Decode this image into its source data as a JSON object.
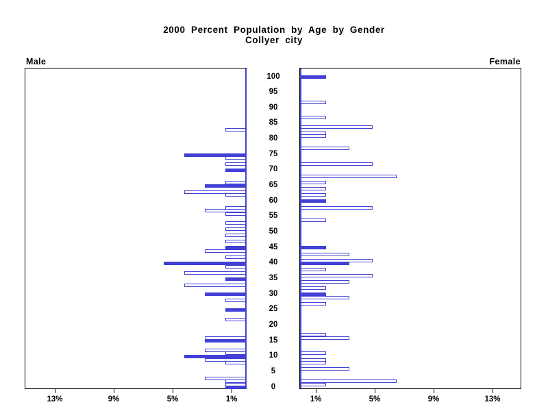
{
  "chart_data": {
    "type": "bar",
    "variant": "population-pyramid",
    "title": "2000 Percent Population by Age by Gender",
    "subtitle": "Collyer city",
    "left_panel_label": "Male",
    "right_panel_label": "Female",
    "legend_position": "none",
    "grid": false,
    "bar_style_note": "ages divisible by 5 drawn solid, other ages drawn hollow outline",
    "colors": {
      "bar": "#4040d6",
      "text": "#000000",
      "background": "#ffffff"
    },
    "age_axis": {
      "min": 0,
      "max": 100,
      "tick_interval": 5,
      "ticks": [
        0,
        5,
        10,
        15,
        20,
        25,
        30,
        35,
        40,
        45,
        50,
        55,
        60,
        65,
        70,
        75,
        80,
        85,
        90,
        95,
        100
      ]
    },
    "percent_axis": {
      "max_percent": 15,
      "male_ticks": [
        {
          "label": "13%",
          "value": 13
        },
        {
          "label": "9%",
          "value": 9
        },
        {
          "label": "5%",
          "value": 5
        },
        {
          "label": "1%",
          "value": 1
        }
      ],
      "female_ticks": [
        {
          "label": "1%",
          "value": 1
        },
        {
          "label": "5%",
          "value": 5
        },
        {
          "label": "9%",
          "value": 9
        },
        {
          "label": "13%",
          "value": 13
        }
      ]
    },
    "series": [
      {
        "name": "Male",
        "bars": [
          {
            "age": 83,
            "value": 1.4,
            "filled": false
          },
          {
            "age": 75,
            "value": 4.2,
            "filled": true
          },
          {
            "age": 74,
            "value": 1.4,
            "filled": false
          },
          {
            "age": 72,
            "value": 1.4,
            "filled": false
          },
          {
            "age": 70,
            "value": 1.4,
            "filled": true
          },
          {
            "age": 66,
            "value": 1.4,
            "filled": false
          },
          {
            "age": 65,
            "value": 2.8,
            "filled": true
          },
          {
            "age": 63,
            "value": 4.2,
            "filled": false
          },
          {
            "age": 62,
            "value": 1.4,
            "filled": false
          },
          {
            "age": 58,
            "value": 1.4,
            "filled": false
          },
          {
            "age": 57,
            "value": 2.8,
            "filled": false
          },
          {
            "age": 56,
            "value": 1.4,
            "filled": false
          },
          {
            "age": 53,
            "value": 1.4,
            "filled": false
          },
          {
            "age": 51,
            "value": 1.4,
            "filled": false
          },
          {
            "age": 49,
            "value": 1.4,
            "filled": false
          },
          {
            "age": 47,
            "value": 1.4,
            "filled": false
          },
          {
            "age": 45,
            "value": 1.4,
            "filled": true
          },
          {
            "age": 44,
            "value": 2.8,
            "filled": false
          },
          {
            "age": 42,
            "value": 1.4,
            "filled": false
          },
          {
            "age": 40,
            "value": 5.6,
            "filled": true
          },
          {
            "age": 39,
            "value": 1.4,
            "filled": false
          },
          {
            "age": 37,
            "value": 4.2,
            "filled": false
          },
          {
            "age": 35,
            "value": 1.4,
            "filled": true
          },
          {
            "age": 33,
            "value": 4.2,
            "filled": false
          },
          {
            "age": 30,
            "value": 2.8,
            "filled": true
          },
          {
            "age": 28,
            "value": 1.4,
            "filled": false
          },
          {
            "age": 25,
            "value": 1.4,
            "filled": true
          },
          {
            "age": 22,
            "value": 1.4,
            "filled": false
          },
          {
            "age": 16,
            "value": 2.8,
            "filled": false
          },
          {
            "age": 15,
            "value": 2.8,
            "filled": true
          },
          {
            "age": 12,
            "value": 2.8,
            "filled": false
          },
          {
            "age": 11,
            "value": 1.4,
            "filled": false
          },
          {
            "age": 10,
            "value": 4.2,
            "filled": true
          },
          {
            "age": 9,
            "value": 2.8,
            "filled": false
          },
          {
            "age": 8,
            "value": 1.4,
            "filled": false
          },
          {
            "age": 3,
            "value": 2.8,
            "filled": false
          },
          {
            "age": 2,
            "value": 1.4,
            "filled": false
          },
          {
            "age": 1,
            "value": 1.4,
            "filled": false
          },
          {
            "age": 0,
            "value": 1.4,
            "filled": true
          }
        ]
      },
      {
        "name": "Female",
        "bars": [
          {
            "age": 100,
            "value": 1.7,
            "filled": true
          },
          {
            "age": 92,
            "value": 1.7,
            "filled": false
          },
          {
            "age": 87,
            "value": 1.7,
            "filled": false
          },
          {
            "age": 84,
            "value": 4.9,
            "filled": false
          },
          {
            "age": 82,
            "value": 1.7,
            "filled": false
          },
          {
            "age": 81,
            "value": 1.7,
            "filled": false
          },
          {
            "age": 77,
            "value": 3.3,
            "filled": false
          },
          {
            "age": 72,
            "value": 4.9,
            "filled": false
          },
          {
            "age": 68,
            "value": 6.5,
            "filled": false
          },
          {
            "age": 66,
            "value": 1.7,
            "filled": false
          },
          {
            "age": 64,
            "value": 1.7,
            "filled": false
          },
          {
            "age": 62,
            "value": 1.7,
            "filled": false
          },
          {
            "age": 60,
            "value": 1.7,
            "filled": true
          },
          {
            "age": 58,
            "value": 4.9,
            "filled": false
          },
          {
            "age": 54,
            "value": 1.7,
            "filled": false
          },
          {
            "age": 45,
            "value": 1.7,
            "filled": true
          },
          {
            "age": 43,
            "value": 3.3,
            "filled": false
          },
          {
            "age": 41,
            "value": 4.9,
            "filled": false
          },
          {
            "age": 40,
            "value": 3.3,
            "filled": true
          },
          {
            "age": 38,
            "value": 1.7,
            "filled": false
          },
          {
            "age": 36,
            "value": 4.9,
            "filled": false
          },
          {
            "age": 34,
            "value": 3.3,
            "filled": false
          },
          {
            "age": 32,
            "value": 1.7,
            "filled": false
          },
          {
            "age": 30,
            "value": 1.7,
            "filled": true
          },
          {
            "age": 29,
            "value": 3.3,
            "filled": false
          },
          {
            "age": 27,
            "value": 1.7,
            "filled": false
          },
          {
            "age": 17,
            "value": 1.7,
            "filled": false
          },
          {
            "age": 16,
            "value": 3.3,
            "filled": false
          },
          {
            "age": 11,
            "value": 1.7,
            "filled": false
          },
          {
            "age": 9,
            "value": 1.7,
            "filled": false
          },
          {
            "age": 8,
            "value": 1.7,
            "filled": false
          },
          {
            "age": 6,
            "value": 3.3,
            "filled": false
          },
          {
            "age": 2,
            "value": 6.5,
            "filled": false
          },
          {
            "age": 1,
            "value": 1.7,
            "filled": false
          }
        ]
      }
    ]
  }
}
